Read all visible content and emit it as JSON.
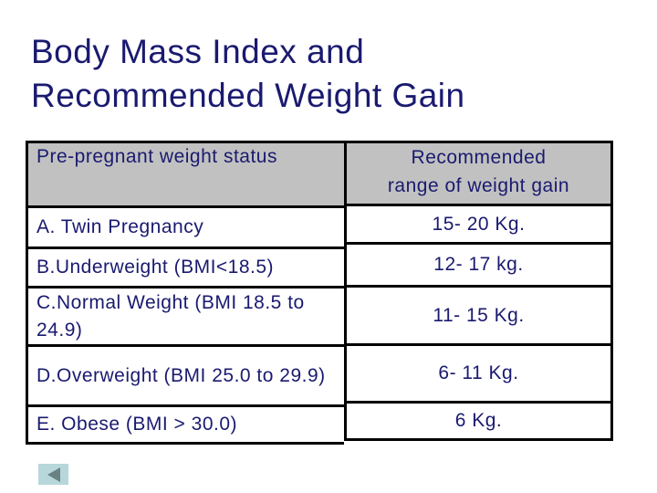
{
  "slide": {
    "title_line1": "Body Mass Index and",
    "title_line2": "Recommended Weight Gain"
  },
  "table": {
    "header": {
      "status_col": "Pre-pregnant weight status",
      "gain_col_line1": "Recommended",
      "gain_col_line2": "range of weight gain"
    },
    "rows": [
      {
        "status": "A. Twin Pregnancy",
        "gain": "15- 20 Kg."
      },
      {
        "status": "B.Underweight (BMI<18.5)",
        "gain": "12- 17 kg."
      },
      {
        "status": "C.Normal Weight (BMI 18.5 to 24.9)",
        "gain": "11- 15 Kg."
      },
      {
        "status": "D.Overweight (BMI 25.0 to 29.9)",
        "gain": "6- 11 Kg."
      },
      {
        "status": "E. Obese (BMI > 30.0)",
        "gain": "6 Kg."
      }
    ]
  },
  "nav": {
    "back_icon": "left-triangle"
  },
  "colors": {
    "text_navy": "#1a1a70",
    "header_gray": "#c1c1c1",
    "border_black": "#000000",
    "back_button_bg": "#b7d7da",
    "back_button_arrow": "#6b8284"
  }
}
